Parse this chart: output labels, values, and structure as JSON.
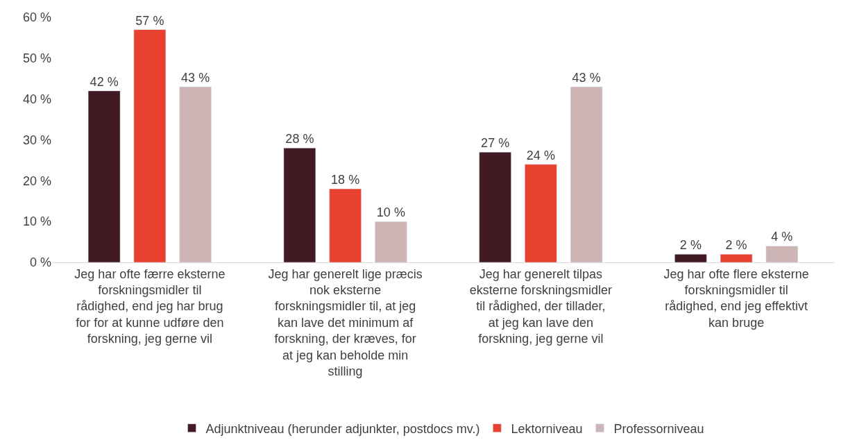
{
  "chart_data": {
    "type": "bar",
    "categories": [
      "Jeg har ofte færre eksterne forskningsmidler til rådighed, end jeg har brug for for at kunne udføre den forskning, jeg gerne vil",
      "Jeg har generelt lige præcis nok eksterne forskningsmidler til, at jeg kan lave det minimum af forskning, der kræves, for at jeg kan beholde min stilling",
      "Jeg har generelt tilpas eksterne forskningsmidler til rådighed, der tillader, at jeg kan lave den forskning, jeg gerne vil",
      "Jeg har ofte flere eksterne forskningsmidler til rådighed, end jeg effektivt kan bruge"
    ],
    "series": [
      {
        "name": "Adjunktniveau (herunder adjunkter, postdocs mv.)",
        "color": "#421a23",
        "values": [
          42,
          28,
          27,
          2
        ],
        "value_labels": [
          "42 %",
          "28 %",
          "27 %",
          "2 %"
        ]
      },
      {
        "name": "Lektorniveau",
        "color": "#e84130",
        "values": [
          57,
          18,
          24,
          2
        ],
        "value_labels": [
          "57 %",
          "18 %",
          "24 %",
          "2 %"
        ]
      },
      {
        "name": "Professorniveau",
        "color": "#cdb5b5",
        "values": [
          43,
          10,
          43,
          4
        ],
        "value_labels": [
          "43 %",
          "10 %",
          "43 %",
          "4 %"
        ]
      }
    ],
    "ylim": [
      0,
      60
    ],
    "yticks": [
      {
        "value": 0,
        "label": "0 %"
      },
      {
        "value": 10,
        "label": "10 %"
      },
      {
        "value": 20,
        "label": "20 %"
      },
      {
        "value": 30,
        "label": "30 %"
      },
      {
        "value": 40,
        "label": "40 %"
      },
      {
        "value": 50,
        "label": "50 %"
      },
      {
        "value": 60,
        "label": "60 %"
      }
    ],
    "grid": false,
    "legend": "bottom"
  }
}
